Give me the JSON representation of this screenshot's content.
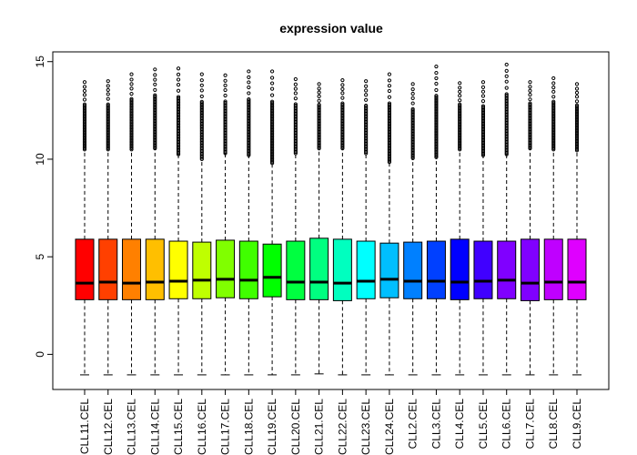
{
  "chart_data": {
    "type": "boxplot",
    "title": "expression value",
    "xlabel": "",
    "ylabel": "",
    "ylim": [
      -1.8,
      15.5
    ],
    "yticks": [
      0,
      5,
      10,
      15
    ],
    "grid": false,
    "legend": "none",
    "series": [
      {
        "name": "CLL11.CEL",
        "color": "#FF0000",
        "min": -1.05,
        "q1": 2.8,
        "median": 3.65,
        "q3": 5.9,
        "whisker_high": 10.5,
        "outlier_max": 13.95
      },
      {
        "name": "CLL12.CEL",
        "color": "#FF4000",
        "min": -1.05,
        "q1": 2.8,
        "median": 3.7,
        "q3": 5.9,
        "whisker_high": 10.5,
        "outlier_max": 14.0
      },
      {
        "name": "CLL13.CEL",
        "color": "#FF8000",
        "min": -1.05,
        "q1": 2.8,
        "median": 3.65,
        "q3": 5.9,
        "whisker_high": 10.5,
        "outlier_max": 14.35
      },
      {
        "name": "CLL14.CEL",
        "color": "#FFBF00",
        "min": -1.05,
        "q1": 2.8,
        "median": 3.7,
        "q3": 5.9,
        "whisker_high": 10.55,
        "outlier_max": 14.6
      },
      {
        "name": "CLL15.CEL",
        "color": "#FFFF00",
        "min": -1.05,
        "q1": 2.85,
        "median": 3.75,
        "q3": 5.8,
        "whisker_high": 10.25,
        "outlier_max": 14.65
      },
      {
        "name": "CLL16.CEL",
        "color": "#BFFF00",
        "min": -1.05,
        "q1": 2.85,
        "median": 3.8,
        "q3": 5.75,
        "whisker_high": 10.0,
        "outlier_max": 14.35
      },
      {
        "name": "CLL17.CEL",
        "color": "#80FF00",
        "min": -1.05,
        "q1": 2.9,
        "median": 3.85,
        "q3": 5.85,
        "whisker_high": 10.3,
        "outlier_max": 14.3
      },
      {
        "name": "CLL18.CEL",
        "color": "#40FF00",
        "min": -1.05,
        "q1": 2.85,
        "median": 3.8,
        "q3": 5.8,
        "whisker_high": 10.2,
        "outlier_max": 14.5
      },
      {
        "name": "CLL19.CEL",
        "color": "#00FF00",
        "min": -1.05,
        "q1": 2.95,
        "median": 3.95,
        "q3": 5.65,
        "whisker_high": 9.8,
        "outlier_max": 14.5
      },
      {
        "name": "CLL20.CEL",
        "color": "#00FF40",
        "min": -1.05,
        "q1": 2.8,
        "median": 3.7,
        "q3": 5.8,
        "whisker_high": 10.3,
        "outlier_max": 14.1
      },
      {
        "name": "CLL21.CEL",
        "color": "#00FF80",
        "min": -1.0,
        "q1": 2.8,
        "median": 3.7,
        "q3": 5.95,
        "whisker_high": 10.55,
        "outlier_max": 13.85
      },
      {
        "name": "CLL22.CEL",
        "color": "#00FFBF",
        "min": -1.05,
        "q1": 2.75,
        "median": 3.65,
        "q3": 5.9,
        "whisker_high": 10.55,
        "outlier_max": 14.05
      },
      {
        "name": "CLL23.CEL",
        "color": "#00FFFF",
        "min": -1.05,
        "q1": 2.85,
        "median": 3.75,
        "q3": 5.8,
        "whisker_high": 10.3,
        "outlier_max": 14.0
      },
      {
        "name": "CLL24.CEL",
        "color": "#00BFFF",
        "min": -1.05,
        "q1": 2.9,
        "median": 3.85,
        "q3": 5.7,
        "whisker_high": 9.85,
        "outlier_max": 14.35
      },
      {
        "name": "CLL2.CEL",
        "color": "#0080FF",
        "min": -1.05,
        "q1": 2.85,
        "median": 3.75,
        "q3": 5.75,
        "whisker_high": 10.05,
        "outlier_max": 13.85
      },
      {
        "name": "CLL3.CEL",
        "color": "#0040FF",
        "min": -1.05,
        "q1": 2.85,
        "median": 3.75,
        "q3": 5.8,
        "whisker_high": 10.1,
        "outlier_max": 14.75
      },
      {
        "name": "CLL4.CEL",
        "color": "#0000FF",
        "min": -1.05,
        "q1": 2.8,
        "median": 3.7,
        "q3": 5.9,
        "whisker_high": 10.5,
        "outlier_max": 13.9
      },
      {
        "name": "CLL5.CEL",
        "color": "#4000FF",
        "min": -1.05,
        "q1": 2.85,
        "median": 3.75,
        "q3": 5.8,
        "whisker_high": 10.2,
        "outlier_max": 13.95
      },
      {
        "name": "CLL6.CEL",
        "color": "#8000FF",
        "min": -1.05,
        "q1": 2.85,
        "median": 3.8,
        "q3": 5.8,
        "whisker_high": 10.25,
        "outlier_max": 14.85
      },
      {
        "name": "CLL7.CEL",
        "color": "#8000FF",
        "min": -1.05,
        "q1": 2.75,
        "median": 3.65,
        "q3": 5.9,
        "whisker_high": 10.55,
        "outlier_max": 13.95
      },
      {
        "name": "CLL8.CEL",
        "color": "#BF00FF",
        "min": -1.05,
        "q1": 2.8,
        "median": 3.7,
        "q3": 5.9,
        "whisker_high": 10.5,
        "outlier_max": 14.15
      },
      {
        "name": "CLL9.CEL",
        "color": "#DF00FF",
        "min": -1.05,
        "q1": 2.8,
        "median": 3.7,
        "q3": 5.9,
        "whisker_high": 10.45,
        "outlier_max": 13.85
      }
    ]
  }
}
